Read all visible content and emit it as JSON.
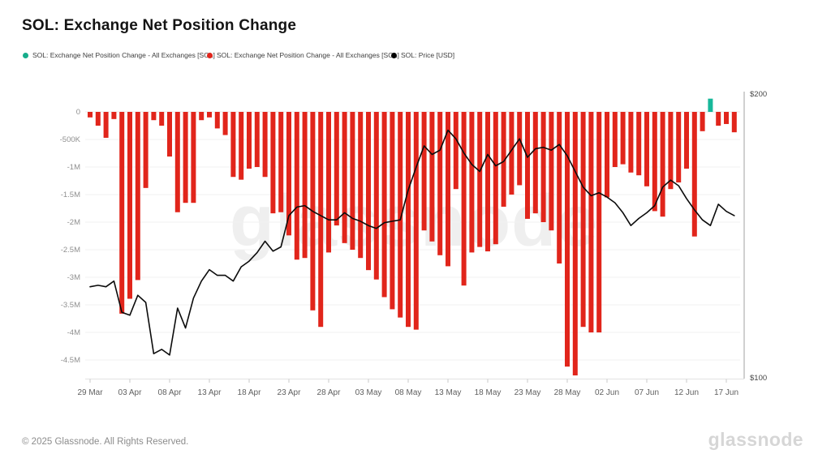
{
  "page": {
    "title": "SOL: Exchange Net Position Change",
    "watermark": "glassnode",
    "footer_copyright": "© 2025 Glassnode. All Rights Reserved.",
    "footer_brand": "glassnode"
  },
  "legend": {
    "items": [
      {
        "label": "SOL: Exchange Net Position Change - All Exchanges [SOL]",
        "color": "#17ad8b",
        "series": "net-position-change-positive"
      },
      {
        "label": "SOL: Exchange Net Position Change - All Exchanges [SOL]",
        "color": "#e1251b",
        "series": "net-position-change-negative"
      },
      {
        "label": "SOL: Price [USD]",
        "color": "#000000",
        "series": "price"
      }
    ]
  },
  "chart_data": {
    "type": "bar",
    "title": "SOL: Exchange Net Position Change",
    "grid": true,
    "legend_position": "top",
    "x": [
      "29 Mar",
      "30 Mar",
      "31 Mar",
      "01 Apr",
      "02 Apr",
      "03 Apr",
      "04 Apr",
      "05 Apr",
      "06 Apr",
      "07 Apr",
      "08 Apr",
      "09 Apr",
      "10 Apr",
      "11 Apr",
      "12 Apr",
      "13 Apr",
      "14 Apr",
      "15 Apr",
      "16 Apr",
      "17 Apr",
      "18 Apr",
      "19 Apr",
      "20 Apr",
      "21 Apr",
      "22 Apr",
      "23 Apr",
      "24 Apr",
      "25 Apr",
      "26 Apr",
      "27 Apr",
      "28 Apr",
      "29 Apr",
      "30 Apr",
      "01 May",
      "02 May",
      "03 May",
      "04 May",
      "05 May",
      "06 May",
      "07 May",
      "08 May",
      "09 May",
      "10 May",
      "11 May",
      "12 May",
      "13 May",
      "14 May",
      "15 May",
      "16 May",
      "17 May",
      "18 May",
      "19 May",
      "20 May",
      "21 May",
      "22 May",
      "23 May",
      "24 May",
      "25 May",
      "26 May",
      "27 May",
      "28 May",
      "29 May",
      "30 May",
      "31 May",
      "01 Jun",
      "02 Jun",
      "03 Jun",
      "04 Jun",
      "05 Jun",
      "06 Jun",
      "07 Jun",
      "08 Jun",
      "09 Jun",
      "10 Jun",
      "11 Jun",
      "12 Jun",
      "13 Jun",
      "14 Jun",
      "15 Jun",
      "16 Jun",
      "17 Jun",
      "18 Jun"
    ],
    "x_tick_labels": [
      "29 Mar",
      "03 Apr",
      "08 Apr",
      "13 Apr",
      "18 Apr",
      "23 Apr",
      "28 Apr",
      "03 May",
      "08 May",
      "13 May",
      "18 May",
      "23 May",
      "28 May",
      "02 Jun",
      "07 Jun",
      "12 Jun",
      "17 Jun"
    ],
    "series": [
      {
        "name": "SOL: Exchange Net Position Change - All Exchanges [SOL]",
        "type": "bar",
        "unit": "SOL (millions)",
        "values_millions": [
          -0.1,
          -0.25,
          -0.47,
          -0.13,
          -3.66,
          -3.39,
          -3.05,
          -1.38,
          -0.15,
          -0.25,
          -0.81,
          -1.82,
          -1.65,
          -1.65,
          -0.15,
          -0.1,
          -0.3,
          -0.42,
          -1.18,
          -1.23,
          -1.03,
          -1.0,
          -1.18,
          -1.84,
          -1.82,
          -2.24,
          -2.68,
          -2.65,
          -3.6,
          -3.9,
          -2.55,
          -2.06,
          -2.38,
          -2.5,
          -2.65,
          -2.87,
          -3.04,
          -3.36,
          -3.58,
          -3.73,
          -3.9,
          -3.95,
          -2.15,
          -2.35,
          -2.6,
          -2.8,
          -1.4,
          -3.15,
          -2.55,
          -2.45,
          -2.53,
          -2.4,
          -1.72,
          -1.5,
          -1.33,
          -1.94,
          -1.84,
          -2.0,
          -2.15,
          -2.75,
          -4.62,
          -4.78,
          -3.9,
          -4.0,
          -4.0,
          -1.55,
          -1.0,
          -0.95,
          -1.1,
          -1.15,
          -1.35,
          -1.8,
          -1.9,
          -1.4,
          -1.28,
          -1.03,
          -2.26,
          -0.35,
          0.24,
          -0.25,
          -0.22,
          -0.37
        ]
      },
      {
        "name": "SOL: Price [USD]",
        "type": "line",
        "unit": "USD",
        "values": [
          132,
          132.5,
          132,
          134,
          123,
          122,
          129,
          126.5,
          108.5,
          110,
          108,
          124.5,
          117.5,
          128,
          134,
          138,
          136,
          136,
          134,
          139,
          141,
          144,
          148,
          144.5,
          146,
          157,
          160,
          160.5,
          158.5,
          157,
          155.5,
          155.5,
          158,
          156,
          155,
          153.5,
          152.5,
          154.5,
          155,
          155.5,
          166,
          174,
          181.5,
          178.5,
          180,
          187,
          184,
          179,
          175,
          172.5,
          178.5,
          174.5,
          176,
          180,
          184,
          177.5,
          180.5,
          181,
          180,
          182,
          178,
          172.5,
          167,
          164,
          165,
          163.5,
          161.5,
          158,
          153.5,
          156,
          158,
          160.5,
          167,
          169.5,
          167.5,
          163,
          159,
          155.5,
          153.5,
          161,
          158.5,
          157
        ]
      }
    ],
    "left_axis": {
      "unit": "SOL",
      "tick_labels": [
        "0",
        "-500K",
        "-1M",
        "-1.5M",
        "-2M",
        "-2.5M",
        "-3M",
        "-3.5M",
        "-4M",
        "-4.5M"
      ],
      "tick_values_millions": [
        0,
        -0.5,
        -1,
        -1.5,
        -2,
        -2.5,
        -3,
        -3.5,
        -4,
        -4.5
      ],
      "range_millions": [
        -4.82,
        0.34
      ]
    },
    "right_axis": {
      "unit": "USD",
      "tick_labels": [
        "$200",
        "$100"
      ],
      "tick_values": [
        200,
        100
      ],
      "range": [
        100,
        200
      ]
    },
    "colors": {
      "bar_negative": "#e1251b",
      "bar_positive": "#17b89a",
      "price_line": "#0b0b0b",
      "gridline": "#f0f0f0",
      "zero_line": "#e8e8e8",
      "axis_line": "#a0a0a0"
    }
  }
}
